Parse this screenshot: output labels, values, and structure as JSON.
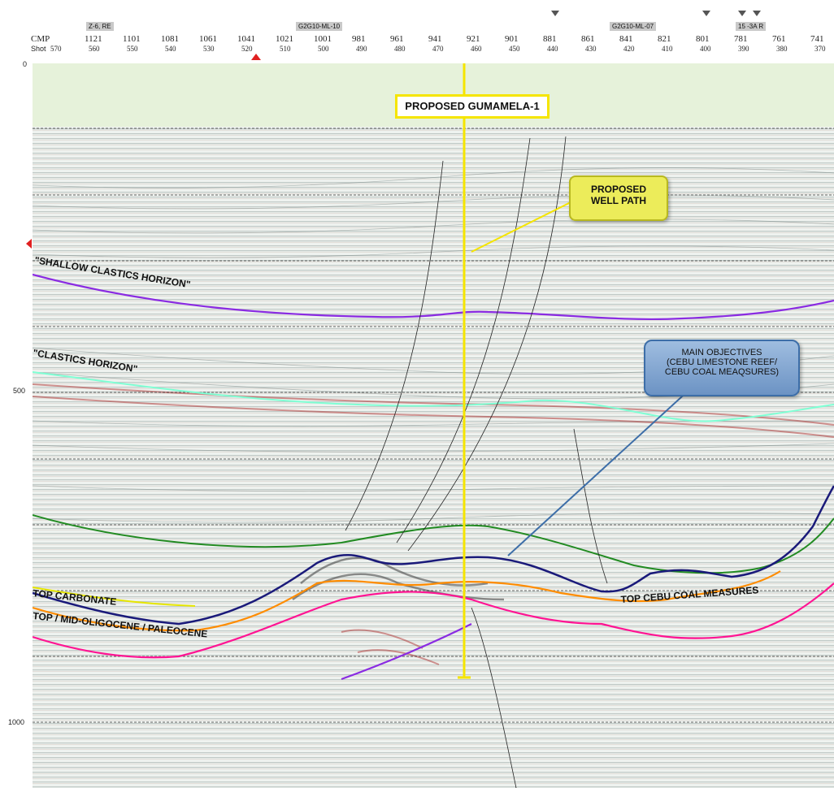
{
  "header": {
    "cmp_label": "CMP",
    "shot_label": "Shot",
    "cmp_numbers": [
      "1121",
      "1101",
      "1081",
      "1061",
      "1041",
      "1021",
      "1001",
      "981",
      "961",
      "941",
      "921",
      "901",
      "881",
      "861",
      "841",
      "821",
      "801",
      "781",
      "761",
      "741"
    ],
    "shot_numbers": [
      "570",
      "560",
      "550",
      "540",
      "530",
      "520",
      "510",
      "500",
      "490",
      "480",
      "470",
      "460",
      "450",
      "440",
      "430",
      "420",
      "410",
      "400",
      "390",
      "380",
      "370"
    ],
    "well_tags": [
      "Z-6, RE",
      "G2G10-ML-10",
      "G2G10-ML-07",
      "15 -3A R"
    ]
  },
  "time_axis": {
    "labels": [
      "0",
      "500",
      "1000"
    ]
  },
  "annotations": {
    "proposed_well_title": "PROPOSED GUMAMELA-1",
    "well_path_line1": "PROPOSED",
    "well_path_line2": "WELL PATH",
    "objectives_line1": "MAIN OBJECTIVES",
    "objectives_line2": "(CEBU LIMESTONE REEF/",
    "objectives_line3": "CEBU COAL MEAQSURES)"
  },
  "horizons": {
    "shallow_clastics": "\"SHALLOW CLASTICS HORIZON\"",
    "clastics": "\"CLASTICS HORIZON\"",
    "top_carbonate": "TOP CARBONATE",
    "top_oligocene": "TOP / MID-OLIGOCENE / PALEOCENE",
    "top_cebu_coal": "TOP CEBU COAL MEASURES"
  },
  "colors": {
    "shallow_clastics": "#8a2be2",
    "clastics": "#7fffd4",
    "green_horizon": "#228b22",
    "blue_horizon": "#1a1a7a",
    "orange_horizon": "#ff8c00",
    "magenta_horizon": "#ff1493",
    "yellow_horizon": "#e6e600",
    "well_line": "#f5e500",
    "water_column": "#e6f2da"
  },
  "icons": {
    "header_marker": "down-triangle",
    "position_marker": "up-triangle-red",
    "left_edge_marker": "left-arrow-red"
  }
}
